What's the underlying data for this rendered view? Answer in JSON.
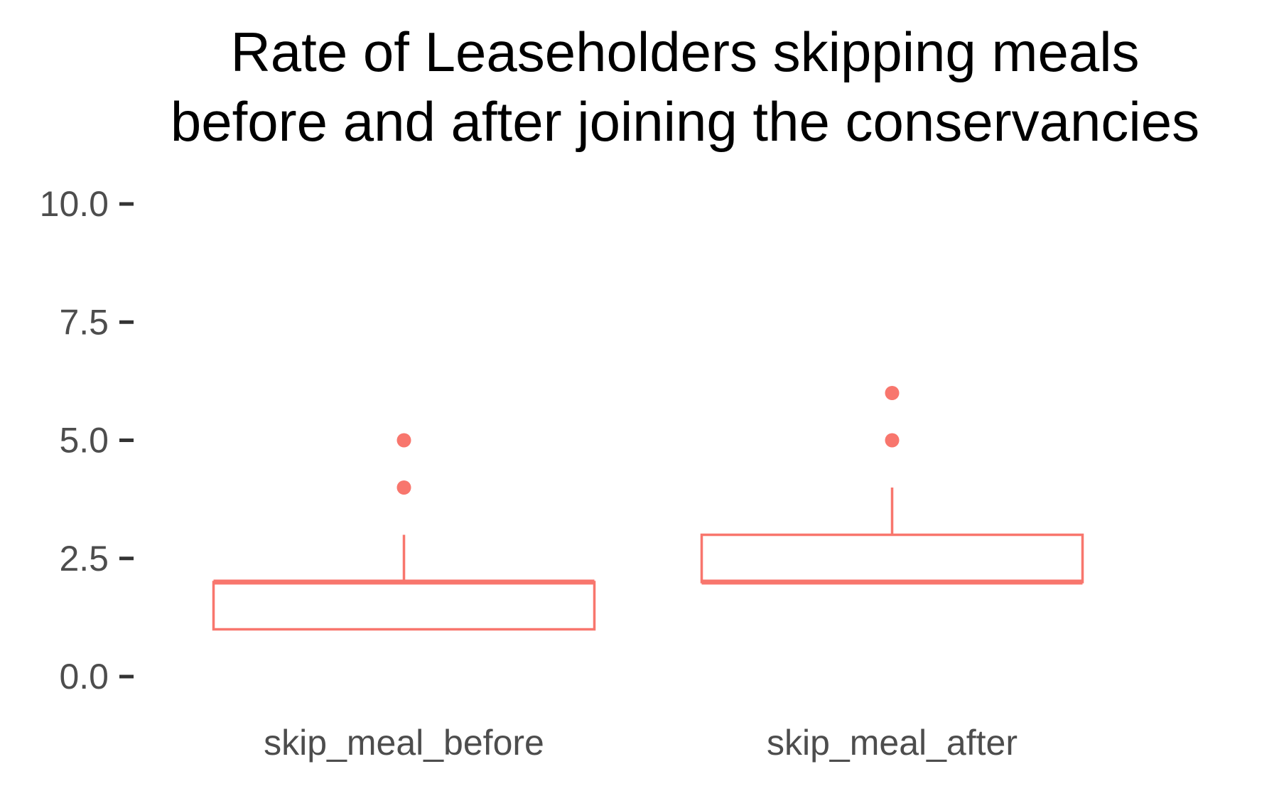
{
  "chart_data": {
    "type": "boxplot",
    "title": "Rate of Leaseholders skipping meals\nbefore and after joining the conservancies",
    "title_lines": [
      "Rate of Leaseholders skipping meals",
      "before and after joining the conservancies"
    ],
    "xlabel": "",
    "ylabel": "",
    "ylim": [
      0,
      10
    ],
    "yticks": [
      0,
      2.5,
      5,
      7.5,
      10
    ],
    "ytick_labels": [
      "0.0",
      "2.5",
      "5.0",
      "7.5",
      "10.0"
    ],
    "categories": [
      "skip_meal_before",
      "skip_meal_after"
    ],
    "boxes": [
      {
        "category": "skip_meal_before",
        "whisker_low": 1,
        "q1": 1,
        "median": 2,
        "q3": 2,
        "whisker_high": 3,
        "outliers": [
          4,
          5
        ]
      },
      {
        "category": "skip_meal_after",
        "whisker_low": 2,
        "q1": 2,
        "median": 2,
        "q3": 3,
        "whisker_high": 4,
        "outliers": [
          5,
          6
        ]
      }
    ],
    "grid": false,
    "legend": "none",
    "color": "#f8766d"
  }
}
